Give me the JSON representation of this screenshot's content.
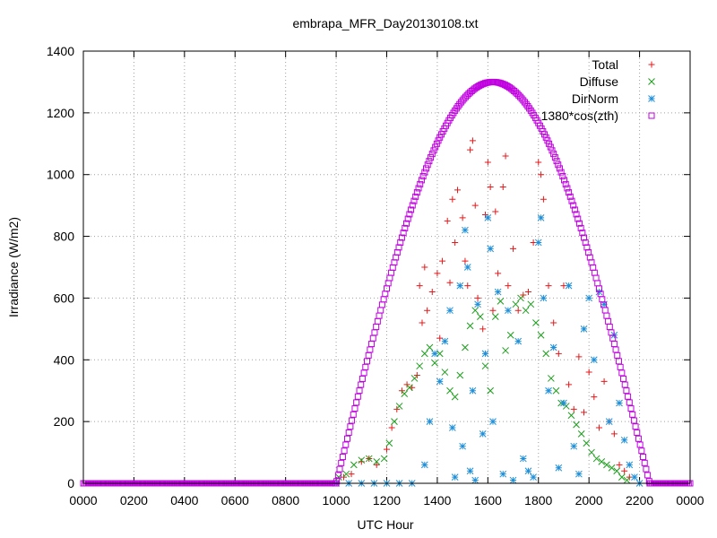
{
  "chart_data": {
    "type": "scatter",
    "title": "embrapa_MFR_Day20130108.txt",
    "xlabel": "UTC Hour",
    "ylabel": "Irradiance (W/m2)",
    "xlim": [
      0,
      2400
    ],
    "ylim": [
      0,
      1400
    ],
    "x_ticks": [
      "0000",
      "0200",
      "0400",
      "0600",
      "0800",
      "1000",
      "1200",
      "1400",
      "1600",
      "1800",
      "2000",
      "2200",
      "0000"
    ],
    "y_ticks": [
      "0",
      "200",
      "400",
      "600",
      "800",
      "1000",
      "1200",
      "1400"
    ],
    "grid": true,
    "legend_position": "top-right",
    "series": [
      {
        "name": "Total",
        "marker": "plus",
        "color": "#e41a1c",
        "points": [
          [
            1000,
            0
          ],
          [
            1030,
            20
          ],
          [
            1060,
            30
          ],
          [
            1100,
            70
          ],
          [
            1130,
            80
          ],
          [
            1160,
            60
          ],
          [
            1200,
            110
          ],
          [
            1220,
            180
          ],
          [
            1240,
            240
          ],
          [
            1260,
            300
          ],
          [
            1280,
            320
          ],
          [
            1300,
            310
          ],
          [
            1320,
            350
          ],
          [
            1330,
            640
          ],
          [
            1340,
            520
          ],
          [
            1350,
            700
          ],
          [
            1360,
            560
          ],
          [
            1380,
            620
          ],
          [
            1400,
            680
          ],
          [
            1410,
            470
          ],
          [
            1420,
            720
          ],
          [
            1440,
            850
          ],
          [
            1450,
            650
          ],
          [
            1460,
            920
          ],
          [
            1470,
            780
          ],
          [
            1480,
            950
          ],
          [
            1500,
            860
          ],
          [
            1510,
            720
          ],
          [
            1520,
            640
          ],
          [
            1530,
            1080
          ],
          [
            1540,
            1110
          ],
          [
            1550,
            900
          ],
          [
            1560,
            600
          ],
          [
            1580,
            500
          ],
          [
            1590,
            870
          ],
          [
            1600,
            1040
          ],
          [
            1610,
            960
          ],
          [
            1620,
            560
          ],
          [
            1630,
            880
          ],
          [
            1640,
            680
          ],
          [
            1660,
            960
          ],
          [
            1670,
            1060
          ],
          [
            1680,
            640
          ],
          [
            1700,
            760
          ],
          [
            1720,
            560
          ],
          [
            1740,
            610
          ],
          [
            1760,
            620
          ],
          [
            1780,
            780
          ],
          [
            1800,
            1040
          ],
          [
            1810,
            1000
          ],
          [
            1820,
            920
          ],
          [
            1840,
            640
          ],
          [
            1860,
            520
          ],
          [
            1880,
            420
          ],
          [
            1900,
            640
          ],
          [
            1920,
            320
          ],
          [
            1940,
            240
          ],
          [
            1960,
            410
          ],
          [
            1980,
            230
          ],
          [
            2000,
            360
          ],
          [
            2020,
            280
          ],
          [
            2040,
            180
          ],
          [
            2060,
            330
          ],
          [
            2080,
            200
          ],
          [
            2100,
            160
          ],
          [
            2120,
            60
          ],
          [
            2140,
            40
          ],
          [
            2160,
            20
          ]
        ]
      },
      {
        "name": "Diffuse",
        "marker": "cross",
        "color": "#1a9e1a",
        "points": [
          [
            1010,
            20
          ],
          [
            1040,
            30
          ],
          [
            1070,
            60
          ],
          [
            1100,
            75
          ],
          [
            1130,
            80
          ],
          [
            1160,
            70
          ],
          [
            1190,
            80
          ],
          [
            1210,
            130
          ],
          [
            1230,
            200
          ],
          [
            1250,
            250
          ],
          [
            1270,
            290
          ],
          [
            1290,
            310
          ],
          [
            1310,
            340
          ],
          [
            1330,
            380
          ],
          [
            1350,
            420
          ],
          [
            1370,
            440
          ],
          [
            1390,
            390
          ],
          [
            1410,
            420
          ],
          [
            1430,
            360
          ],
          [
            1450,
            300
          ],
          [
            1470,
            280
          ],
          [
            1490,
            350
          ],
          [
            1510,
            440
          ],
          [
            1530,
            510
          ],
          [
            1550,
            560
          ],
          [
            1570,
            540
          ],
          [
            1590,
            380
          ],
          [
            1610,
            300
          ],
          [
            1630,
            540
          ],
          [
            1650,
            590
          ],
          [
            1670,
            430
          ],
          [
            1690,
            480
          ],
          [
            1710,
            580
          ],
          [
            1730,
            600
          ],
          [
            1750,
            560
          ],
          [
            1770,
            580
          ],
          [
            1790,
            520
          ],
          [
            1810,
            480
          ],
          [
            1830,
            420
          ],
          [
            1850,
            340
          ],
          [
            1870,
            300
          ],
          [
            1890,
            260
          ],
          [
            1910,
            250
          ],
          [
            1930,
            220
          ],
          [
            1950,
            190
          ],
          [
            1970,
            160
          ],
          [
            1990,
            130
          ],
          [
            2010,
            100
          ],
          [
            2030,
            80
          ],
          [
            2050,
            70
          ],
          [
            2070,
            60
          ],
          [
            2090,
            50
          ],
          [
            2110,
            40
          ],
          [
            2130,
            20
          ],
          [
            2150,
            10
          ]
        ]
      },
      {
        "name": "DirNorm",
        "marker": "star",
        "color": "#1f8fd8",
        "points": [
          [
            1000,
            0
          ],
          [
            1050,
            0
          ],
          [
            1100,
            0
          ],
          [
            1150,
            0
          ],
          [
            1200,
            0
          ],
          [
            1250,
            0
          ],
          [
            1300,
            0
          ],
          [
            1350,
            60
          ],
          [
            1370,
            200
          ],
          [
            1390,
            420
          ],
          [
            1410,
            330
          ],
          [
            1430,
            460
          ],
          [
            1450,
            560
          ],
          [
            1460,
            180
          ],
          [
            1470,
            20
          ],
          [
            1490,
            640
          ],
          [
            1500,
            120
          ],
          [
            1510,
            820
          ],
          [
            1520,
            700
          ],
          [
            1530,
            40
          ],
          [
            1540,
            300
          ],
          [
            1550,
            10
          ],
          [
            1560,
            580
          ],
          [
            1580,
            160
          ],
          [
            1590,
            420
          ],
          [
            1600,
            860
          ],
          [
            1610,
            760
          ],
          [
            1620,
            200
          ],
          [
            1640,
            620
          ],
          [
            1660,
            30
          ],
          [
            1680,
            560
          ],
          [
            1700,
            10
          ],
          [
            1720,
            460
          ],
          [
            1740,
            80
          ],
          [
            1760,
            40
          ],
          [
            1780,
            20
          ],
          [
            1800,
            780
          ],
          [
            1810,
            860
          ],
          [
            1820,
            600
          ],
          [
            1840,
            300
          ],
          [
            1860,
            440
          ],
          [
            1880,
            50
          ],
          [
            1900,
            260
          ],
          [
            1920,
            640
          ],
          [
            1940,
            120
          ],
          [
            1960,
            30
          ],
          [
            1980,
            500
          ],
          [
            2000,
            600
          ],
          [
            2020,
            400
          ],
          [
            2040,
            620
          ],
          [
            2060,
            580
          ],
          [
            2080,
            200
          ],
          [
            2100,
            480
          ],
          [
            2120,
            260
          ],
          [
            2140,
            140
          ],
          [
            2160,
            60
          ],
          [
            2180,
            20
          ],
          [
            2200,
            0
          ]
        ]
      },
      {
        "name": "1380*cos(zth)",
        "marker": "square",
        "color": "#c000e0",
        "curve": {
          "x_start": 1000,
          "x_peak": 1620,
          "x_end": 2240,
          "peak": 1300
        },
        "points": [
          [
            1000,
            0
          ],
          [
            2240,
            0
          ]
        ]
      }
    ]
  }
}
